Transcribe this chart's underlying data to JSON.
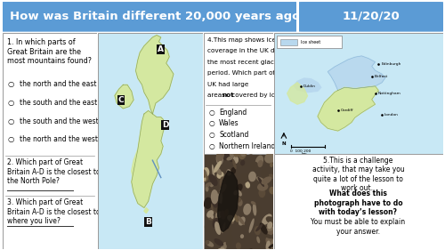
{
  "title": "How was Britain different 20,000 years ago?",
  "date": "11/20/20",
  "header_bg": "#5b9bd5",
  "header_text_color": "#ffffff",
  "body_bg": "#f0f0f0",
  "border_color": "#aaaaaa",
  "q1_title": "1. In which parts of\nGreat Britain are the\nmost mountains found?",
  "q1_options": [
    "the north and the east",
    "the south and the east",
    "the south and the west",
    "the north and the west"
  ],
  "q2": "2. Which part of Great\nBritain A-D is the closest to\nthe North Pole?",
  "q3": "3. Which part of Great\nBritain A-D is the closest to\nwhere you live?",
  "q4_line1": "4.This map shows ice",
  "q4_line2": "coverage in the UK during",
  "q4_line3": "the most recent glacial",
  "q4_line4": "period. Which part of the",
  "q4_line5": "UK had large",
  "q4_line6_pre": "areas ",
  "q4_line6_bold": "not",
  "q4_line6_post": " covered by ice?",
  "q4_options": [
    "England",
    "Wales",
    "Scotland",
    "Northern Ireland"
  ],
  "q5_pre": "5.This is a challenge\nactivity, that may take you\nquite a lot of the lesson to\nwork out. ",
  "q5_bold": "What does this\nphotograph have to do\nwith today’s lesson?",
  "q5_post": " You\nmust be able to explain\nyour answer.",
  "map_bg": "#c8e8f5",
  "map_land": "#d4e8a0",
  "map_land_light": "#e8f0c0",
  "ice_blue": "#b8d8ee",
  "answer_line_color": "#333333",
  "col_border": "#999999",
  "gap_color": "#c8c8c8"
}
